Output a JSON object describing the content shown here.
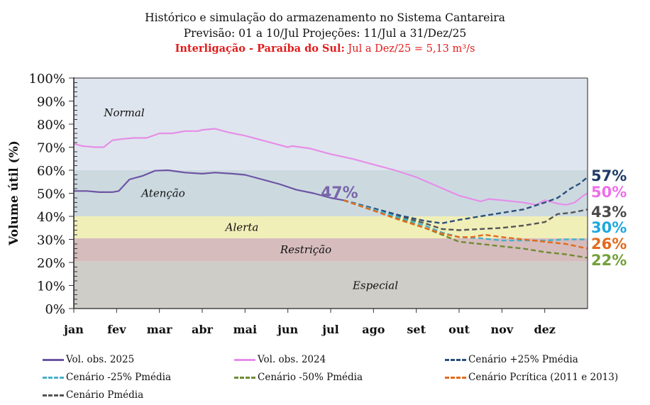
{
  "chart_data": {
    "type": "line",
    "title": "Histórico e simulação do armazenamento no Sistema Cantareira",
    "subtitle": "Previsão: 01 a 10/Jul Projeções: 11/Jul a 31/Dez/25",
    "note_bold": "Interligação - Paraíba do Sul:",
    "note_rest": "Jul a Dez/25 = 5,13 m³/s",
    "ylabel": "Volume útil (%)",
    "xlabel": "",
    "ylim": [
      0,
      100
    ],
    "xlim": [
      0,
      12
    ],
    "yticks": [
      "0%",
      "10%",
      "20%",
      "30%",
      "40%",
      "50%",
      "60%",
      "70%",
      "80%",
      "90%",
      "100%"
    ],
    "categories": [
      "jan",
      "fev",
      "mar",
      "abr",
      "mai",
      "jun",
      "jul",
      "ago",
      "set",
      "out",
      "nov",
      "dez"
    ],
    "zones": [
      {
        "name": "Especial",
        "from": 0,
        "to": 20.5,
        "color": "#cfcdc8"
      },
      {
        "name": "Restrição",
        "from": 20.5,
        "to": 30.5,
        "color": "#d6bcbd"
      },
      {
        "name": "Alerta",
        "from": 30.5,
        "to": 40,
        "color": "#f1efb8"
      },
      {
        "name": "Atenção",
        "from": 40,
        "to": 60,
        "color": "#ccdae0"
      },
      {
        "name": "Normal",
        "from": 60,
        "to": 100,
        "color": "#dfe5ee"
      }
    ],
    "annotation_current": "47%",
    "series": [
      {
        "name": "Vol. obs. 2025",
        "style": "solid",
        "color": "#6d54a3",
        "x": [
          0,
          0.3,
          0.6,
          0.9,
          1.05,
          1.3,
          1.6,
          1.9,
          2.2,
          2.6,
          3.0,
          3.3,
          3.7,
          4.0,
          4.4,
          4.8,
          5.2,
          5.6,
          6.0,
          6.3
        ],
        "y": [
          51,
          51,
          50.5,
          50.5,
          51,
          56,
          57.5,
          59.8,
          60,
          59,
          58.5,
          59,
          58.5,
          58,
          56,
          54,
          51.5,
          50,
          48,
          47
        ]
      },
      {
        "name": "Vol. obs. 2024",
        "style": "solid",
        "color": "#e58ee8",
        "x": [
          0,
          0.2,
          0.5,
          0.7,
          0.9,
          1.1,
          1.4,
          1.7,
          2.0,
          2.3,
          2.6,
          2.9,
          3.0,
          3.3,
          3.6,
          4.0,
          4.4,
          4.8,
          5.0,
          5.1,
          5.5,
          6.0,
          6.5,
          7.0,
          7.5,
          8.0,
          8.5,
          9.0,
          9.5,
          9.7,
          10.0,
          10.5,
          10.8,
          11.0,
          11.3,
          11.5,
          11.7,
          11.9,
          12.0
        ],
        "y": [
          71.5,
          70.5,
          70,
          70,
          73,
          73.5,
          74,
          74,
          76,
          76,
          77,
          77,
          77.5,
          78,
          76.5,
          75,
          73,
          71,
          70,
          70.5,
          69.5,
          67,
          65,
          62.5,
          60,
          57,
          53,
          49,
          46.5,
          47.5,
          47,
          46,
          45,
          47,
          45.5,
          45,
          46,
          49,
          50
        ]
      },
      {
        "name": "Cenário +25% Pmédia",
        "style": "dash",
        "color": "#2b4f7a",
        "x": [
          6.3,
          7.0,
          7.6,
          8.2,
          8.6,
          9.0,
          9.5,
          10.0,
          10.5,
          11.0,
          11.3,
          11.6,
          11.8,
          12.0
        ],
        "y": [
          47,
          43.5,
          40.5,
          38,
          37,
          38.5,
          40,
          41.5,
          43,
          46,
          48,
          52,
          54,
          57
        ]
      },
      {
        "name": "Cenário -25% Pmédia",
        "style": "dash",
        "color": "#49b0c9",
        "x": [
          6.3,
          7.0,
          7.6,
          8.2,
          8.6,
          9.0,
          9.5,
          10.0,
          10.5,
          11.0,
          11.5,
          12.0
        ],
        "y": [
          47,
          43,
          39.5,
          36,
          33,
          31,
          30.5,
          29.5,
          29.5,
          29.5,
          30,
          30
        ]
      },
      {
        "name": "Cenário -50% Pmédia",
        "style": "dash",
        "color": "#6f8c34",
        "x": [
          6.3,
          7.0,
          7.6,
          8.2,
          8.6,
          9.0,
          9.5,
          10.0,
          10.5,
          11.0,
          11.5,
          12.0
        ],
        "y": [
          47,
          42.5,
          39,
          35,
          32,
          29,
          28,
          27,
          26,
          24.5,
          23.5,
          22
        ]
      },
      {
        "name": "Cenário Pcrítica (2011 e 2013)",
        "style": "dash",
        "color": "#e16b1d",
        "x": [
          6.3,
          7.0,
          7.6,
          8.2,
          8.6,
          9.0,
          9.3,
          9.6,
          10.0,
          10.5,
          11.0,
          11.5,
          12.0
        ],
        "y": [
          47,
          42.5,
          38.5,
          35,
          32.5,
          31,
          31,
          32,
          31,
          30,
          29,
          28,
          26
        ]
      },
      {
        "name": "Cenário Pmédia",
        "style": "dash",
        "color": "#555555",
        "x": [
          6.3,
          7.0,
          7.6,
          8.2,
          8.6,
          9.0,
          9.5,
          10.0,
          10.5,
          11.0,
          11.3,
          11.6,
          12.0
        ],
        "y": [
          47,
          43,
          40,
          37,
          34.5,
          34,
          34.5,
          35,
          36,
          37.5,
          41,
          41.5,
          43
        ]
      }
    ],
    "end_labels": [
      {
        "text": "57%",
        "value": 57,
        "color": "#1f3b66"
      },
      {
        "text": "50%",
        "value": 50,
        "color": "#ee6fe9"
      },
      {
        "text": "43%",
        "value": 43,
        "color": "#4a4a4a"
      },
      {
        "text": "30%",
        "value": 30,
        "color": "#1fa8de"
      },
      {
        "text": "26%",
        "value": 26,
        "color": "#e16b1d"
      },
      {
        "text": "22%",
        "value": 22,
        "color": "#73a03b"
      }
    ],
    "legend_placement": "bottom"
  }
}
